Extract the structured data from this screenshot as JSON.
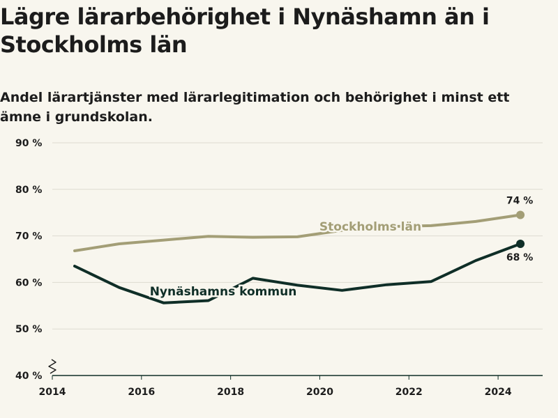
{
  "title": "Lägre lärarbehörighet i Nynäshamn än i Stockholms län",
  "subtitle": "Andel lärartjänster med lärarlegitimation och behörighet i minst ett ämne i grundskolan.",
  "chart_data": {
    "type": "line",
    "x": [
      2014.5,
      2015.5,
      2016.5,
      2017.5,
      2018.5,
      2019.5,
      2020.5,
      2021.5,
      2022.5,
      2023.5,
      2024.5
    ],
    "series": [
      {
        "name": "Stockholms län",
        "color": "#a39e76",
        "values": [
          66.8,
          68.3,
          69.1,
          69.9,
          69.7,
          69.8,
          71.2,
          72.0,
          72.2,
          73.1,
          74.5
        ],
        "end_label": "74 %"
      },
      {
        "name": "Nynäshamns kommun",
        "color": "#0f2e27",
        "values": [
          63.5,
          58.9,
          55.6,
          56.1,
          60.9,
          59.4,
          58.3,
          59.5,
          60.2,
          64.7,
          68.3
        ],
        "end_label": "68 %"
      }
    ],
    "xticks": [
      2014,
      2016,
      2018,
      2020,
      2022,
      2024
    ],
    "yticks": [
      {
        "value": 40,
        "label": "40 %"
      },
      {
        "value": 50,
        "label": "50 %"
      },
      {
        "value": 60,
        "label": "60 %"
      },
      {
        "value": 70,
        "label": "70 %"
      },
      {
        "value": 80,
        "label": "80 %"
      },
      {
        "value": 90,
        "label": "90 %"
      }
    ],
    "xlim": [
      2014,
      2025
    ],
    "ylim": [
      40,
      90
    ],
    "axis_break": true,
    "grid": "horizontal"
  }
}
